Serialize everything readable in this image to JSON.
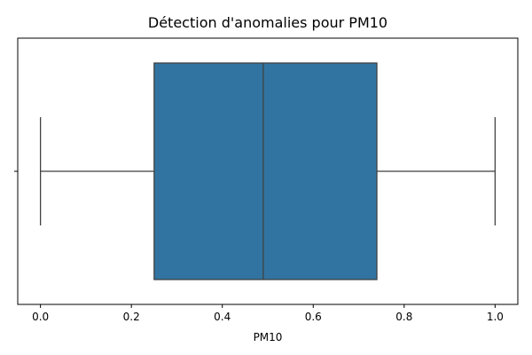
{
  "chart_data": {
    "type": "boxplot",
    "title": "Détection d'anomalies pour PM10",
    "xlabel": "PM10",
    "ylabel": "",
    "orientation": "horizontal",
    "xlim": [
      -0.05,
      1.05
    ],
    "xticks": [
      0.0,
      0.2,
      0.4,
      0.6,
      0.8,
      1.0
    ],
    "xtick_labels": [
      "0.0",
      "0.2",
      "0.4",
      "0.6",
      "0.8",
      "1.0"
    ],
    "grid": false,
    "series": [
      {
        "min": 0.0,
        "q1": 0.25,
        "median": 0.49,
        "q3": 0.74,
        "max": 1.0,
        "color": "#3274a1"
      }
    ]
  },
  "colors": {
    "box_fill": "#3274a1",
    "line": "#3f3f3f",
    "axis": "#000000"
  }
}
